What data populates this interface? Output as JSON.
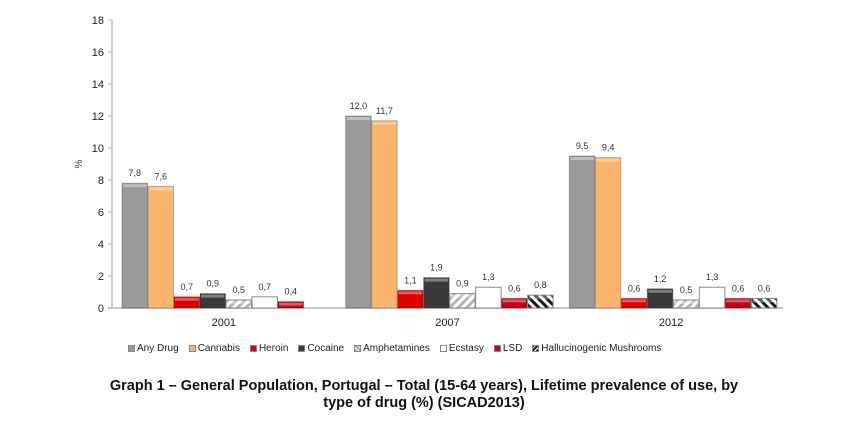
{
  "chart_data": {
    "type": "bar",
    "title": "Graph 1 – General Population, Portugal – Total (15-64 years), Lifetime prevalence of use, by type of drug (%) (SICAD2013)",
    "xlabel": "",
    "ylabel": "%",
    "ylim": [
      0,
      18
    ],
    "yticks": [
      0,
      2,
      4,
      6,
      8,
      10,
      12,
      14,
      16,
      18
    ],
    "ytick_labels": [
      "0",
      "2",
      "4",
      "6",
      "8",
      "10",
      "12",
      "14",
      "16",
      "18"
    ],
    "grid": false,
    "legend_position": "bottom",
    "categories": [
      "2001",
      "2007",
      "2012"
    ],
    "series": [
      {
        "name": "Any Drug",
        "color": "#9a9a9a",
        "pattern": "solid",
        "values": [
          7.8,
          12.0,
          9.5
        ],
        "labels": [
          "7,8",
          "12,0",
          "9,5"
        ]
      },
      {
        "name": "Cannabis",
        "color": "#f9b46e",
        "pattern": "solid",
        "values": [
          7.6,
          11.7,
          9.4
        ],
        "labels": [
          "7,6",
          "11,7",
          "9,4"
        ]
      },
      {
        "name": "Heroin",
        "color": "#e00000",
        "pattern": "solid",
        "values": [
          0.7,
          1.1,
          0.6
        ],
        "labels": [
          "0,7",
          "1,1",
          "0,6"
        ]
      },
      {
        "name": "Cocaine",
        "color": "#3a3a3a",
        "pattern": "solid",
        "values": [
          0.9,
          1.9,
          1.2
        ],
        "labels": [
          "0,9",
          "1,9",
          "1,2"
        ]
      },
      {
        "name": "Amphetamines",
        "color": "#c8c8c8",
        "pattern": "hatch-light",
        "values": [
          0.5,
          0.9,
          0.5
        ],
        "labels": [
          "0,5",
          "0,9",
          "0,5"
        ]
      },
      {
        "name": "Ecstasy",
        "color": "#ffffff",
        "pattern": "solid",
        "values": [
          0.7,
          1.3,
          1.3
        ],
        "labels": [
          "0,7",
          "1,3",
          "1,3"
        ]
      },
      {
        "name": "LSD",
        "color": "#c4001a",
        "pattern": "solid",
        "values": [
          0.4,
          0.6,
          0.6
        ],
        "labels": [
          "0,4",
          "0,6",
          "0,6"
        ]
      },
      {
        "name": "Hallucinogenic Mushrooms",
        "color": "#222222",
        "pattern": "hatch-dark",
        "values": [
          null,
          0.8,
          0.6
        ],
        "labels": [
          null,
          "0,8",
          "0,6"
        ]
      }
    ]
  },
  "caption": {
    "line1": "Graph 1 – General Population, Portugal – Total (15-64 years), Lifetime prevalence of use, by",
    "line2": "type of drug (%) (SICAD2013)"
  }
}
